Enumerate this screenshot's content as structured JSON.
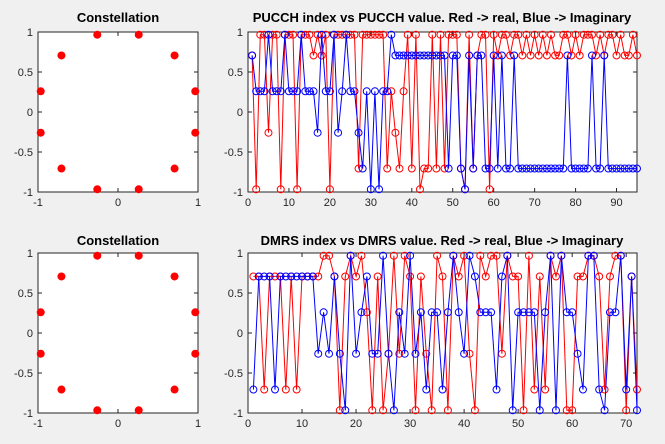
{
  "colors": {
    "real": "#ff0000",
    "imag": "#0000ff",
    "constellation": "#ff0000",
    "axis": "#262626",
    "figure_bg": "#f0f0f0"
  },
  "chart_data": [
    {
      "type": "scatter",
      "title": "Constellation",
      "xlim": [
        -1,
        1
      ],
      "ylim": [
        -1,
        1
      ],
      "xticks": [
        -1,
        0,
        1
      ],
      "yticks": [
        -1,
        -0.5,
        0,
        0.5,
        1
      ],
      "xticklabels": [
        "-1",
        "0",
        "1"
      ],
      "yticklabels": [
        "-1",
        "-0.5",
        "0",
        "0.5",
        "1"
      ],
      "series": [
        {
          "points": [
            [
              0.259,
              0.966
            ],
            [
              0.707,
              0.707
            ],
            [
              0.966,
              0.259
            ],
            [
              0.966,
              -0.259
            ],
            [
              0.707,
              -0.707
            ],
            [
              0.259,
              -0.966
            ],
            [
              -0.259,
              -0.966
            ],
            [
              -0.707,
              -0.707
            ],
            [
              -0.966,
              -0.259
            ],
            [
              -0.966,
              0.259
            ],
            [
              -0.707,
              0.707
            ],
            [
              -0.259,
              0.966
            ]
          ]
        }
      ]
    },
    {
      "type": "line",
      "title": "PUCCH index vs PUCCH value. Red -> real, Blue -> Imaginary",
      "xlim": [
        0,
        95
      ],
      "ylim": [
        -1,
        1
      ],
      "xticks": [
        0,
        10,
        20,
        30,
        40,
        50,
        60,
        70,
        80,
        90
      ],
      "xticklabels": [
        "0",
        "10",
        "20",
        "30",
        "40",
        "50",
        "60",
        "70",
        "80",
        "90"
      ],
      "yticks": [
        -1,
        -0.5,
        0,
        0.5,
        1
      ],
      "yticklabels": [
        "-1",
        "-0.5",
        "0",
        "0.5",
        "1"
      ],
      "series": [
        {
          "color": "#ff0000",
          "values": [
            0.707,
            -0.966,
            0.966,
            0.966,
            -0.259,
            0.966,
            0.966,
            -0.966,
            0.966,
            0.966,
            0.966,
            -0.966,
            0.966,
            0.966,
            0.966,
            0.707,
            0.966,
            0.707,
            0.966,
            -0.966,
            0.966,
            0.966,
            0.966,
            0.966,
            0.966,
            0.966,
            -0.707,
            0.966,
            0.966,
            0.966,
            0.966,
            0.966,
            0.966,
            -0.707,
            0.259,
            -0.259,
            -0.707,
            0.259,
            0.966,
            -0.707,
            0.966,
            -0.966,
            -0.707,
            -0.707,
            0.966,
            -0.707,
            0.966,
            -0.707,
            0.966,
            0.966,
            0.966,
            -0.707,
            -0.966,
            0.966,
            -0.707,
            0.707,
            0.966,
            0.966,
            -0.966,
            0.966,
            0.707,
            0.966,
            0.966,
            0.707,
            0.966,
            0.966,
            0.707,
            0.966,
            0.707,
            0.966,
            0.707,
            0.966,
            0.707,
            0.966,
            0.707,
            0.707,
            0.966,
            0.966,
            0.707,
            0.966,
            0.707,
            0.966,
            0.966,
            0.966,
            0.707,
            0.966,
            0.707,
            0.966,
            0.966,
            0.707,
            0.966,
            0.707,
            0.707,
            0.966,
            0.707
          ]
        },
        {
          "color": "#0000ff",
          "values": [
            0.707,
            0.259,
            0.259,
            0.259,
            0.966,
            0.259,
            0.259,
            0.259,
            0.966,
            0.259,
            0.259,
            0.259,
            0.966,
            0.259,
            0.259,
            0.259,
            -0.259,
            0.966,
            0.259,
            0.259,
            0.966,
            -0.259,
            0.259,
            0.966,
            0.259,
            0.259,
            -0.259,
            -0.707,
            0.259,
            -0.966,
            0.259,
            -0.966,
            0.259,
            0.259,
            0.966,
            0.707,
            0.707,
            0.707,
            0.707,
            0.707,
            0.707,
            0.707,
            0.707,
            0.707,
            0.707,
            0.707,
            0.707,
            0.707,
            -0.707,
            0.707,
            0.707,
            -0.707,
            -0.966,
            0.707,
            -0.707,
            0.707,
            0.707,
            -0.707,
            -0.707,
            0.707,
            -0.707,
            0.707,
            -0.707,
            -0.707,
            0.707,
            -0.707,
            -0.707,
            -0.707,
            -0.707,
            -0.707,
            -0.707,
            -0.707,
            -0.707,
            -0.707,
            -0.707,
            -0.707,
            -0.707,
            0.707,
            -0.707,
            -0.707,
            -0.707,
            -0.707,
            -0.707,
            0.707,
            -0.707,
            -0.707,
            0.707,
            -0.707,
            -0.707,
            -0.707,
            -0.707,
            -0.707,
            -0.707,
            -0.707,
            -0.707
          ]
        }
      ]
    },
    {
      "type": "scatter",
      "title": "Constellation",
      "xlim": [
        -1,
        1
      ],
      "ylim": [
        -1,
        1
      ],
      "xticks": [
        -1,
        0,
        1
      ],
      "yticks": [
        -1,
        -0.5,
        0,
        0.5,
        1
      ],
      "xticklabels": [
        "-1",
        "0",
        "1"
      ],
      "yticklabels": [
        "-1",
        "-0.5",
        "0",
        "0.5",
        "1"
      ],
      "series": [
        {
          "points": [
            [
              0.259,
              0.966
            ],
            [
              0.707,
              0.707
            ],
            [
              0.966,
              0.259
            ],
            [
              0.966,
              -0.259
            ],
            [
              0.707,
              -0.707
            ],
            [
              0.259,
              -0.966
            ],
            [
              -0.259,
              -0.966
            ],
            [
              -0.707,
              -0.707
            ],
            [
              -0.966,
              -0.259
            ],
            [
              -0.966,
              0.259
            ],
            [
              -0.707,
              0.707
            ],
            [
              -0.259,
              0.966
            ]
          ]
        }
      ]
    },
    {
      "type": "line",
      "title": "DMRS index vs DMRS value. Red -> real, Blue -> Imaginary",
      "xlim": [
        0,
        72
      ],
      "ylim": [
        -1,
        1
      ],
      "xticks": [
        0,
        10,
        20,
        30,
        40,
        50,
        60,
        70
      ],
      "xticklabels": [
        "0",
        "10",
        "20",
        "30",
        "40",
        "50",
        "60",
        "70"
      ],
      "yticks": [
        -1,
        -0.5,
        0,
        0.5,
        1
      ],
      "yticklabels": [
        "-1",
        "-0.5",
        "0",
        "0.5",
        "1"
      ],
      "series": [
        {
          "color": "#ff0000",
          "values": [
            0.707,
            0.707,
            -0.707,
            0.707,
            0.707,
            0.707,
            -0.707,
            0.707,
            -0.707,
            0.707,
            0.707,
            0.707,
            0.707,
            0.966,
            0.966,
            0.707,
            -0.966,
            0.707,
            0.966,
            0.707,
            0.966,
            0.259,
            -0.966,
            0.707,
            -0.966,
            -0.259,
            0.966,
            -0.259,
            0.966,
            0.707,
            -0.966,
            0.707,
            -0.259,
            -0.966,
            0.966,
            0.707,
            -0.966,
            0.966,
            0.707,
            0.966,
            -0.259,
            -0.966,
            0.966,
            0.707,
            0.966,
            0.966,
            -0.259,
            0.966,
            0.707,
            0.707,
            -0.966,
            0.966,
            -0.707,
            0.707,
            -0.707,
            0.966,
            0.707,
            0.966,
            -0.966,
            -0.966,
            0.707,
            0.707,
            0.966,
            0.966,
            0.707,
            -0.707,
            0.707,
            0.966,
            0.966,
            -0.966,
            0.707,
            -0.707
          ]
        },
        {
          "color": "#0000ff",
          "values": [
            -0.707,
            0.707,
            0.707,
            0.707,
            -0.707,
            0.707,
            0.707,
            0.707,
            0.707,
            0.707,
            0.707,
            0.707,
            -0.259,
            0.259,
            -0.259,
            0.707,
            -0.259,
            -0.966,
            0.966,
            -0.259,
            0.259,
            0.707,
            -0.259,
            -0.259,
            0.966,
            -0.259,
            -0.966,
            0.259,
            -0.259,
            0.966,
            -0.259,
            0.259,
            -0.707,
            0.259,
            0.259,
            -0.707,
            0.259,
            0.966,
            0.259,
            -0.259,
            0.966,
            0.707,
            0.259,
            0.259,
            0.259,
            -0.707,
            0.707,
            0.966,
            -0.966,
            0.259,
            0.259,
            0.259,
            0.259,
            -0.966,
            0.259,
            0.966,
            -0.966,
            0.966,
            0.259,
            0.259,
            -0.259,
            -0.707,
            0.966,
            0.966,
            -0.707,
            -0.966,
            0.259,
            0.259,
            0.966,
            -0.707,
            0.707,
            -0.966
          ]
        }
      ]
    }
  ]
}
